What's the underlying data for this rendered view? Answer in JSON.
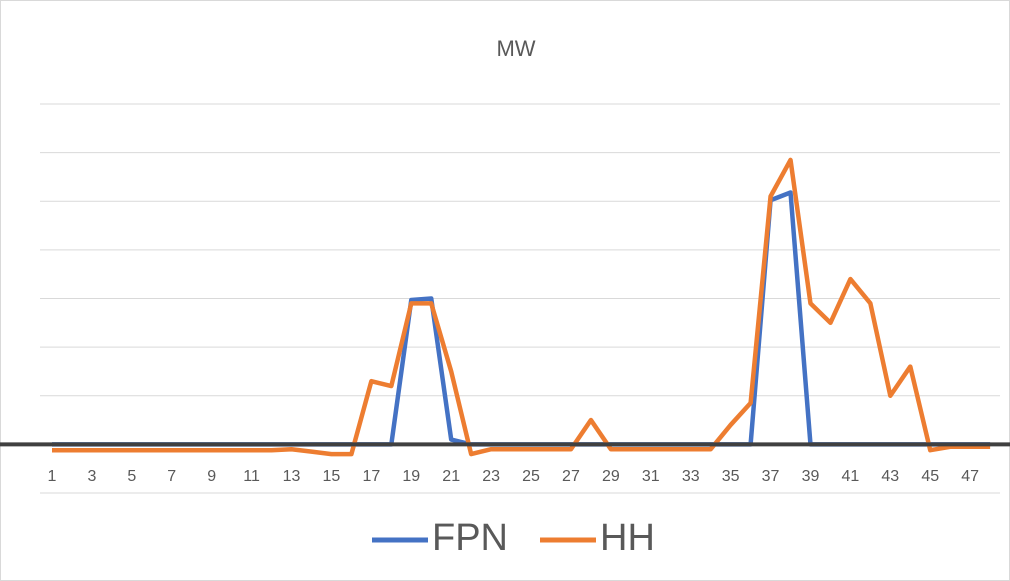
{
  "chart_data": {
    "type": "line",
    "title": "MW",
    "categories": [
      1,
      null,
      3,
      null,
      5,
      null,
      7,
      null,
      9,
      null,
      11,
      null,
      13,
      null,
      15,
      null,
      17,
      null,
      19,
      null,
      21,
      null,
      23,
      null,
      25,
      null,
      27,
      null,
      29,
      null,
      31,
      null,
      33,
      null,
      35,
      null,
      37,
      null,
      39,
      null,
      41,
      null,
      43,
      null,
      45,
      null,
      47,
      null
    ],
    "series": [
      {
        "name": "FPN",
        "color": "#4472c4",
        "values": [
          0,
          0,
          0,
          0,
          0,
          0,
          0,
          0,
          0,
          0,
          0,
          0,
          0,
          0,
          0,
          0,
          0,
          0,
          2.97,
          3.0,
          0.1,
          0,
          0,
          0,
          0,
          0,
          0,
          0,
          0,
          0,
          0,
          0,
          0,
          0,
          0,
          0,
          5.02,
          5.18,
          0,
          0,
          0,
          0,
          0,
          0,
          0,
          0,
          0,
          0
        ]
      },
      {
        "name": "HH",
        "color": "#ed7d31",
        "values": [
          -0.12,
          -0.12,
          -0.12,
          -0.12,
          -0.12,
          -0.12,
          -0.12,
          -0.12,
          -0.12,
          -0.12,
          -0.12,
          -0.12,
          -0.1,
          -0.15,
          -0.2,
          -0.2,
          1.3,
          1.2,
          2.9,
          2.9,
          1.5,
          -0.2,
          -0.1,
          -0.1,
          -0.1,
          -0.1,
          -0.1,
          0.5,
          -0.1,
          -0.1,
          -0.1,
          -0.1,
          -0.1,
          -0.1,
          0.4,
          0.85,
          5.1,
          5.85,
          2.9,
          2.5,
          3.4,
          2.9,
          1.0,
          1.6,
          -0.12,
          -0.05,
          -0.05,
          -0.05
        ]
      }
    ],
    "ylim": [
      -1,
      7
    ],
    "yticks": [
      -1,
      0,
      1,
      2,
      3,
      4,
      5,
      6,
      7
    ],
    "grid": true,
    "legend": "bottom"
  }
}
